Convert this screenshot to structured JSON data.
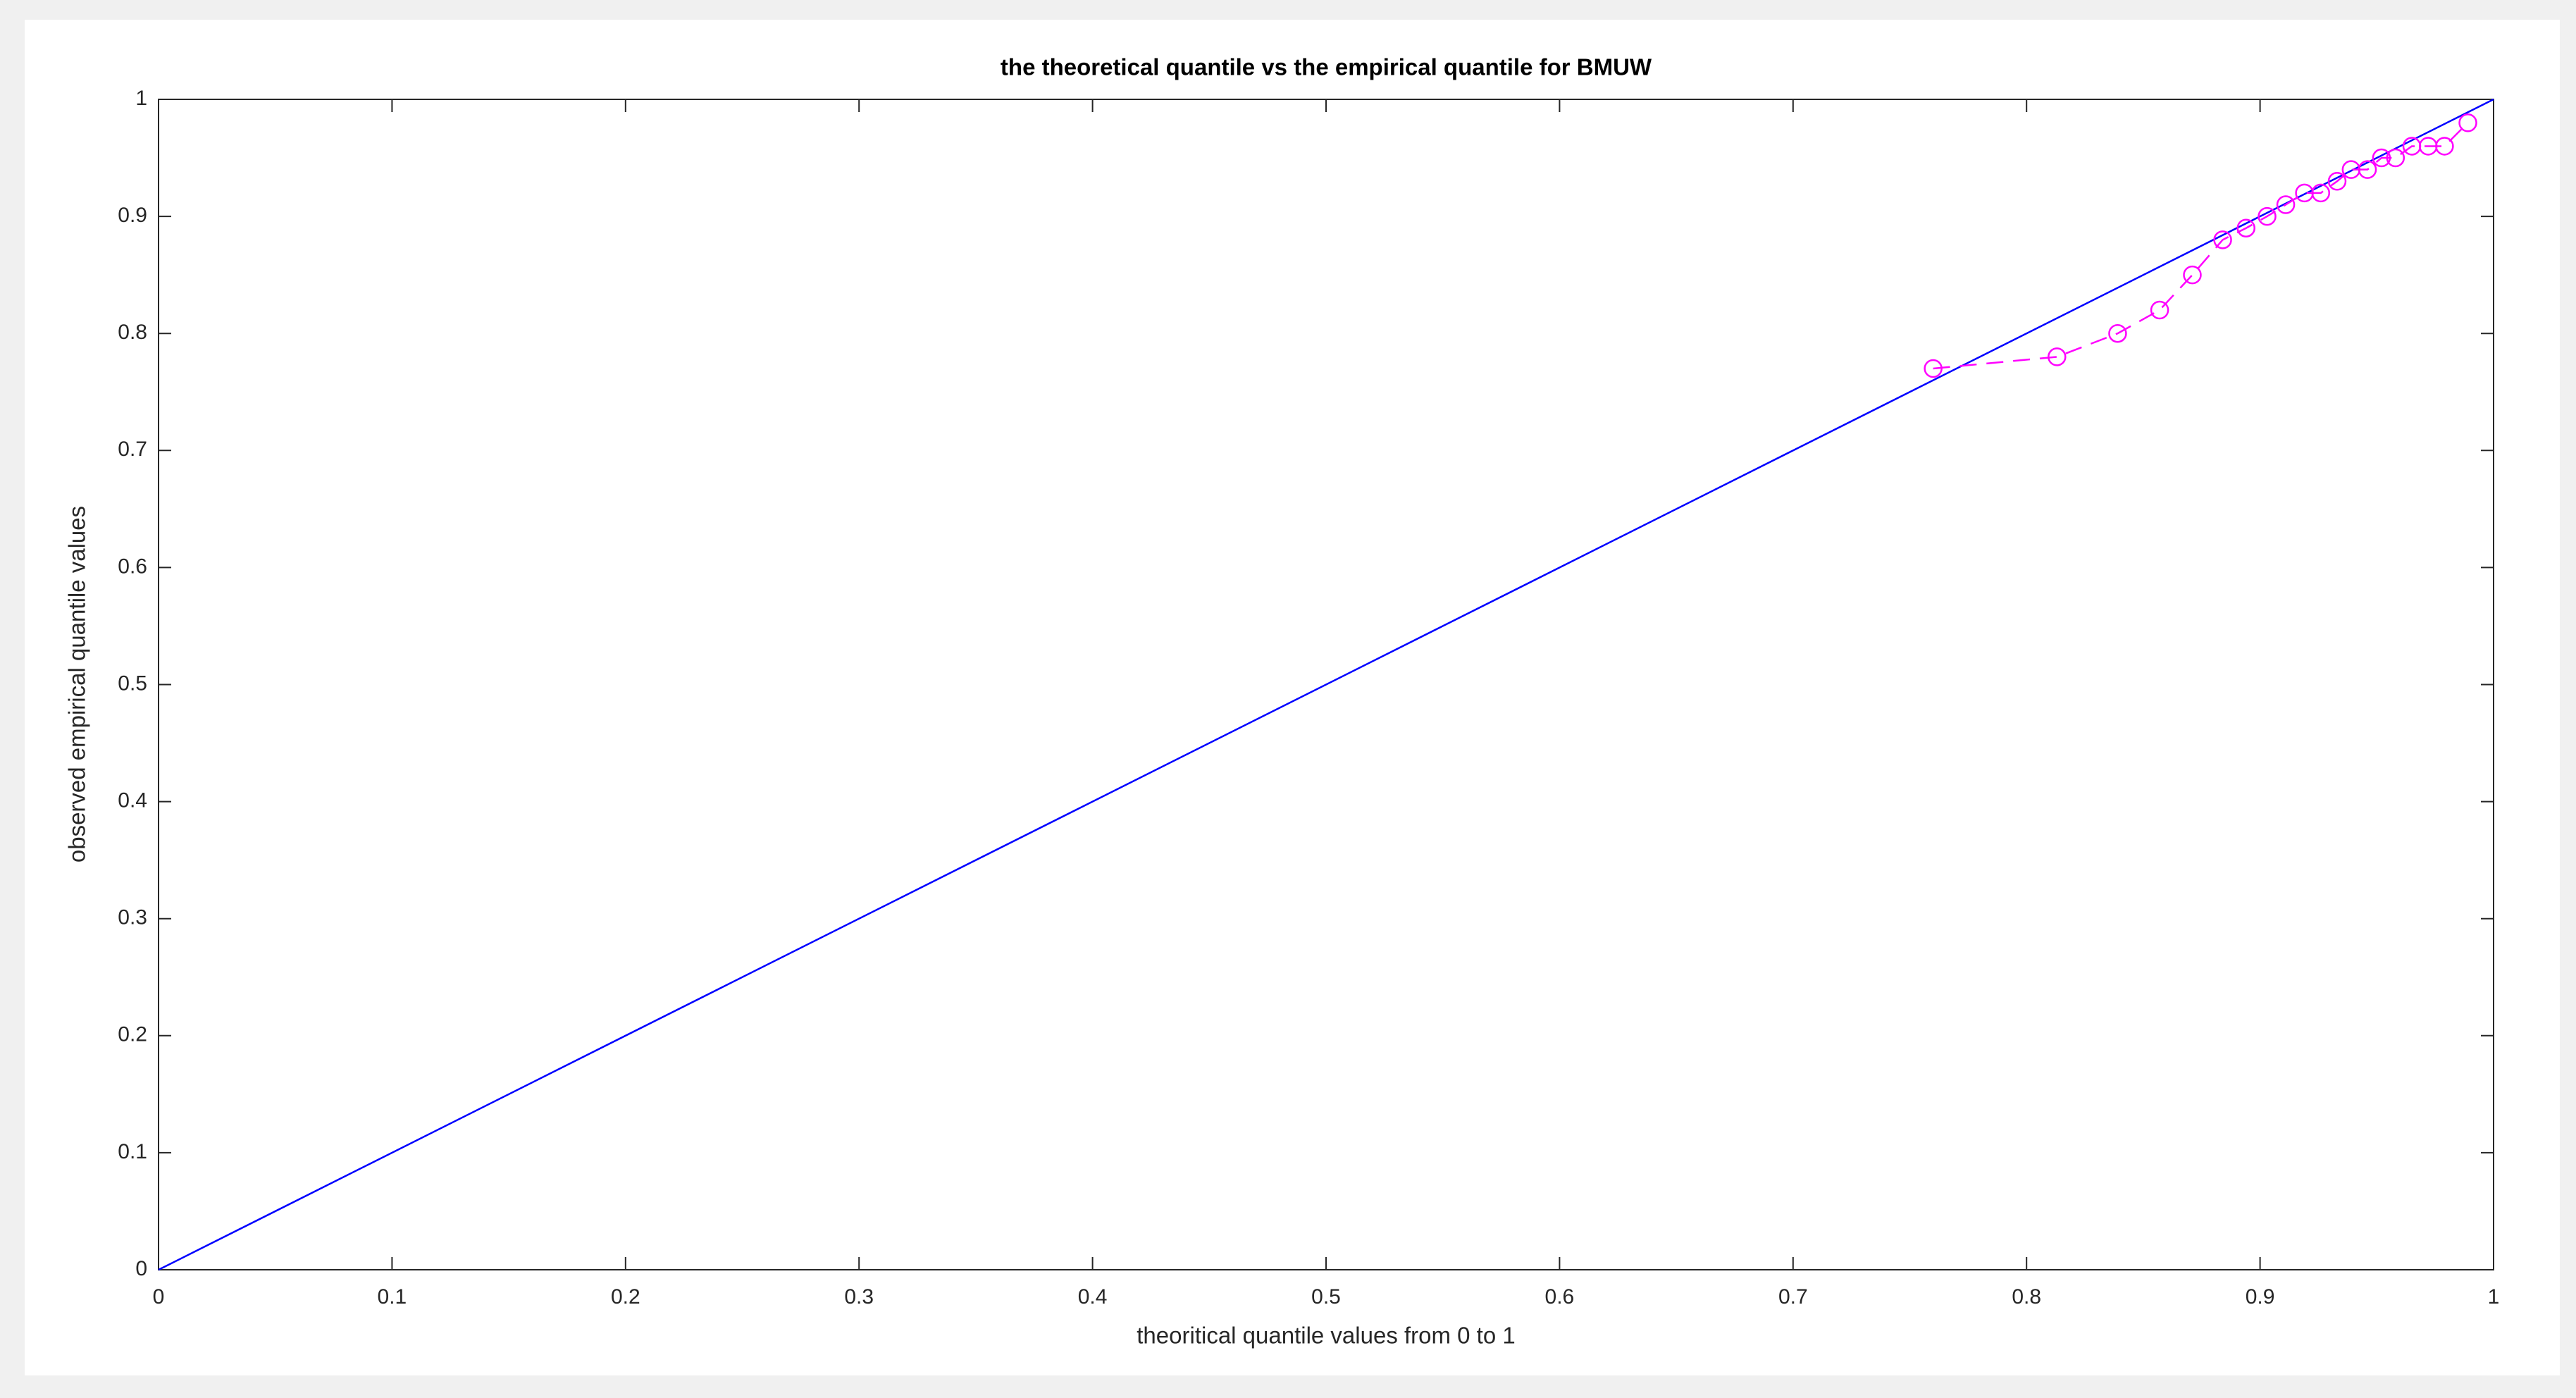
{
  "chart_data": {
    "type": "line",
    "title": "the theoretical quantile vs the empirical quantile for BMUW",
    "xlabel": "theoritical quantile values from 0 to 1",
    "ylabel": "observed empirical quantile  values",
    "xlim": [
      0,
      1
    ],
    "ylim": [
      0,
      1
    ],
    "xticks": [
      0,
      0.1,
      0.2,
      0.3,
      0.4,
      0.5,
      0.6,
      0.7,
      0.8,
      0.9,
      1
    ],
    "yticks": [
      0,
      0.1,
      0.2,
      0.3,
      0.4,
      0.5,
      0.6,
      0.7,
      0.8,
      0.9,
      1
    ],
    "grid": false,
    "series": [
      {
        "color": "#0000ff",
        "linestyle": "solid",
        "marker": "none",
        "x": [
          0,
          1
        ],
        "values": [
          0,
          1
        ]
      },
      {
        "color": "#ff00ff",
        "linestyle": "dashed",
        "marker": "o",
        "x": [
          0.76,
          0.813,
          0.839,
          0.857,
          0.871,
          0.884,
          0.894,
          0.903,
          0.911,
          0.919,
          0.926,
          0.933,
          0.939,
          0.946,
          0.952,
          0.958,
          0.965,
          0.972,
          0.979,
          0.989
        ],
        "values": [
          0.77,
          0.78,
          0.8,
          0.82,
          0.85,
          0.88,
          0.89,
          0.9,
          0.91,
          0.92,
          0.92,
          0.93,
          0.94,
          0.94,
          0.95,
          0.95,
          0.96,
          0.96,
          0.96,
          0.98
        ]
      }
    ]
  }
}
